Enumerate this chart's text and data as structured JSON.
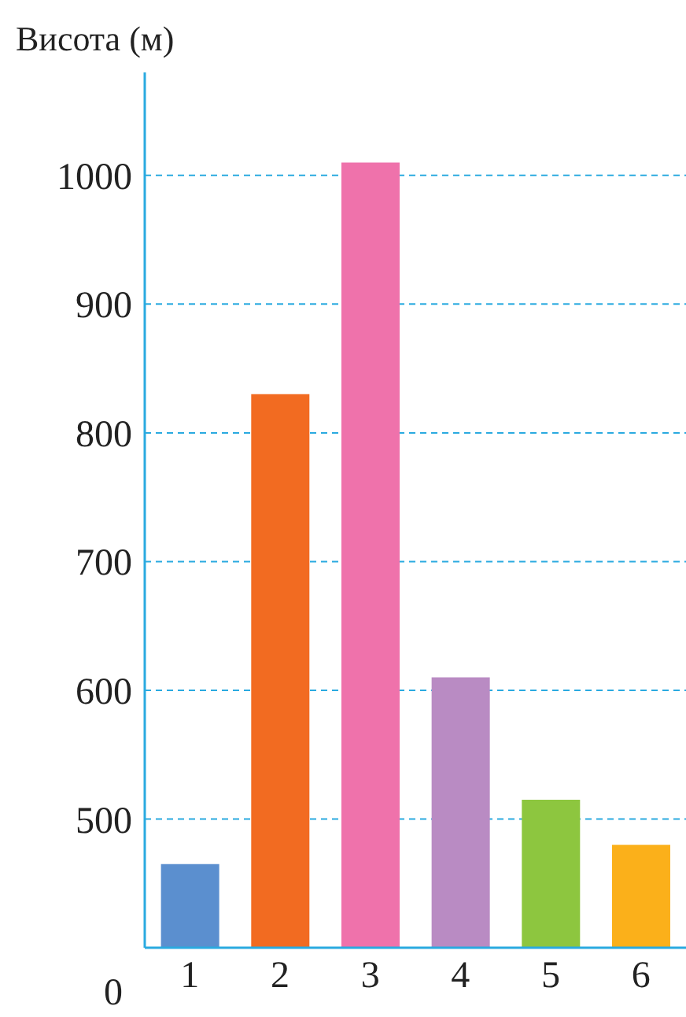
{
  "chart_data": {
    "type": "bar",
    "ylabel": "Висота (м)",
    "categories": [
      "1",
      "2",
      "3",
      "4",
      "5",
      "6"
    ],
    "values": [
      465,
      830,
      1010,
      610,
      515,
      480
    ],
    "colors": [
      "#5b8fcf",
      "#f26b21",
      "#ef72ab",
      "#b98bc3",
      "#8dc63f",
      "#fbb01a"
    ],
    "ylim": [
      400,
      1080
    ],
    "yticks": [
      500,
      600,
      700,
      800,
      900,
      1000
    ],
    "annotations": [
      "0"
    ],
    "grid": "y"
  }
}
